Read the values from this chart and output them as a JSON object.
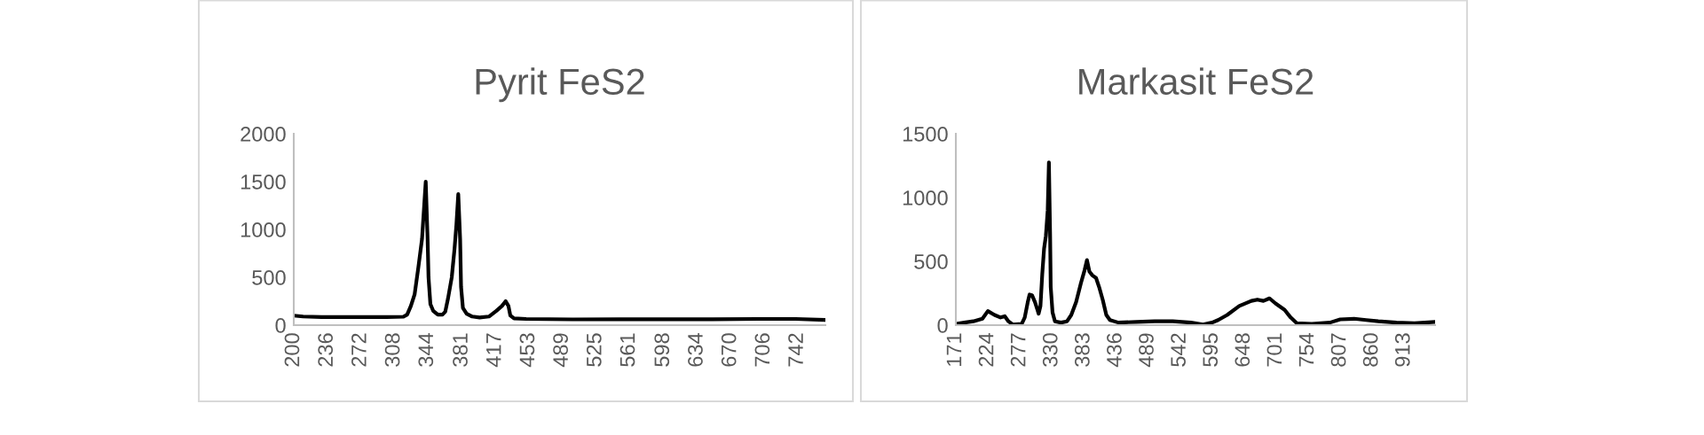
{
  "chart_data": [
    {
      "type": "line",
      "title": "Pyrit FeS2",
      "x": [
        200,
        210,
        230,
        250,
        280,
        300,
        318,
        322,
        326,
        330,
        334,
        338,
        340,
        342,
        344,
        345,
        347,
        350,
        355,
        360,
        363,
        366,
        370,
        373,
        375,
        377,
        379,
        380,
        382,
        386,
        392,
        400,
        410,
        418,
        424,
        428,
        431,
        433,
        437,
        450,
        500,
        550,
        600,
        650,
        700,
        740,
        772
      ],
      "series": [
        {
          "color": "#000000",
          "values": [
            100,
            90,
            85,
            85,
            85,
            85,
            88,
            110,
            200,
            320,
            600,
            900,
            1200,
            1500,
            900,
            500,
            220,
            150,
            110,
            110,
            140,
            280,
            500,
            800,
            1050,
            1370,
            900,
            400,
            180,
            120,
            90,
            80,
            90,
            150,
            200,
            250,
            200,
            100,
            70,
            65,
            60,
            62,
            62,
            62,
            65,
            65,
            55
          ]
        }
      ],
      "xlim": [
        200,
        772
      ],
      "xticks": [
        200,
        236,
        272,
        308,
        344,
        381,
        417,
        453,
        489,
        525,
        561,
        598,
        634,
        670,
        706,
        742
      ],
      "ylim": [
        0,
        2000
      ],
      "yticks": [
        0,
        500,
        1000,
        1500,
        2000
      ],
      "grid": false,
      "legend": false,
      "marker": "none",
      "line_style": "solid"
    },
    {
      "type": "line",
      "title": "Markasit FeS2",
      "x": [
        171,
        185,
        200,
        215,
        224,
        235,
        245,
        252,
        258,
        265,
        280,
        285,
        290,
        293,
        297,
        302,
        306,
        308,
        311,
        314,
        317,
        320,
        323,
        325,
        327,
        328,
        331,
        335,
        345,
        355,
        362,
        370,
        378,
        384,
        388,
        392,
        397,
        403,
        408,
        414,
        420,
        426,
        440,
        470,
        500,
        530,
        560,
        580,
        595,
        605,
        620,
        640,
        660,
        670,
        680,
        690,
        700,
        715,
        725,
        735,
        760,
        790,
        807,
        830,
        850,
        870,
        900,
        930,
        964
      ],
      "series": [
        {
          "color": "#000000",
          "values": [
            10,
            20,
            30,
            50,
            110,
            80,
            60,
            70,
            30,
            5,
            10,
            60,
            180,
            240,
            235,
            180,
            120,
            90,
            150,
            400,
            600,
            700,
            900,
            1275,
            700,
            300,
            100,
            30,
            20,
            30,
            80,
            180,
            330,
            430,
            510,
            420,
            390,
            370,
            300,
            200,
            80,
            40,
            20,
            25,
            30,
            30,
            20,
            5,
            20,
            40,
            80,
            150,
            190,
            200,
            190,
            210,
            170,
            120,
            60,
            15,
            10,
            20,
            45,
            50,
            40,
            30,
            20,
            15,
            25
          ]
        }
      ],
      "xlim": [
        171,
        964
      ],
      "xticks": [
        171,
        224,
        277,
        330,
        383,
        436,
        489,
        542,
        595,
        648,
        701,
        754,
        807,
        860,
        913
      ],
      "ylim": [
        0,
        1500
      ],
      "yticks": [
        0,
        500,
        1000,
        1500
      ],
      "grid": false,
      "legend": false,
      "marker": "none",
      "line_style": "solid"
    }
  ]
}
